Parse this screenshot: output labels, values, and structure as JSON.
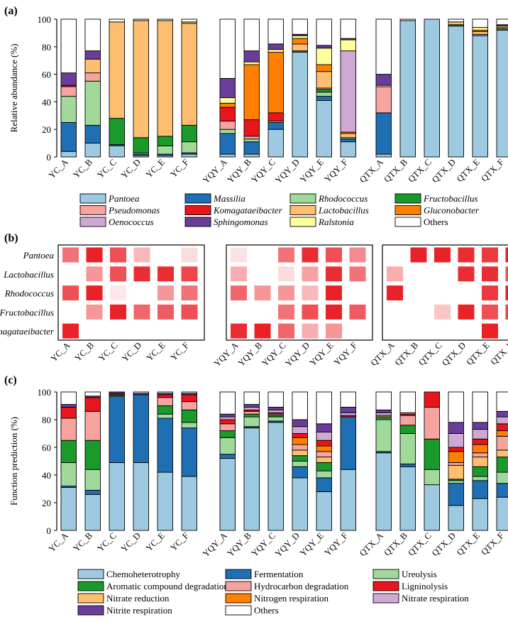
{
  "colors": {
    "Pantoea": "#9ecae1",
    "Massilia": "#1f6fb4",
    "Rhodococcus": "#a1d99b",
    "Fructobacillus": "#1a9a2a",
    "Pseudomonas": "#f7a3a0",
    "Komagataeibacter": "#e8161c",
    "Lactobacillus": "#fdbf6f",
    "Gluconobacter": "#ff7f00",
    "Oenococcus": "#cfa9d4",
    "Sphingomonas": "#6a3d9a",
    "Ralstonia": "#ffff99",
    "Others": "#ffffff",
    "Chemoheterotrophy": "#9ecae1",
    "Fermentation": "#1f6fb4",
    "Ureolysis": "#a1d99b",
    "Aromatic compound degradation": "#1a9a2a",
    "Hydrocarbon degradation": "#f7a3a0",
    "Ligninolysis": "#e8161c",
    "Nitrate reduction": "#fdbf6f",
    "Nitrogen respiration": "#ff7f00",
    "Nitrate respiration": "#cfa9d4",
    "Nitrite respiration": "#6a3d9a",
    "heat": "#e8161c"
  },
  "panels": {
    "a": "(a)",
    "b": "(b)",
    "c": "(c)"
  },
  "samples": {
    "groups": [
      [
        "YC_A",
        "YC_B",
        "YC_C",
        "YC_D",
        "YC_E",
        "YC_F"
      ],
      [
        "YQY_A",
        "YQY_B",
        "YQY_C",
        "YQY_D",
        "YQY_E",
        "YQY_F"
      ],
      [
        "QTX_A",
        "QTX_B",
        "QTX_C",
        "QTX_D",
        "QTX_E",
        "QTX_F"
      ]
    ]
  },
  "chart_data": [
    {
      "type": "bar",
      "stacked": true,
      "title": "",
      "ylabel": "Relative abundance (%)",
      "ylim": [
        0,
        100
      ],
      "yticks": [
        0,
        20,
        40,
        60,
        80,
        100
      ],
      "legend_position": "bottom",
      "legend": [
        "Pantoea",
        "Massilia",
        "Rhodococcus",
        "Fructobacillus",
        "Pseudomonas",
        "Komagataeibacter",
        "Lactobacillus",
        "Gluconobacter",
        "Oenococcus",
        "Sphingomonas",
        "Ralstonia",
        "Others"
      ],
      "stack_order": [
        "Pantoea",
        "Massilia",
        "Rhodococcus",
        "Fructobacillus",
        "Pseudomonas",
        "Komagataeibacter",
        "Lactobacillus",
        "Gluconobacter",
        "Oenococcus",
        "Ralstonia",
        "Sphingomonas",
        "Others"
      ],
      "categories": [
        "YC_A",
        "YC_B",
        "YC_C",
        "YC_D",
        "YC_E",
        "YC_F",
        "YQY_A",
        "YQY_B",
        "YQY_C",
        "YQY_D",
        "YQY_E",
        "YQY_F",
        "QTX_A",
        "QTX_B",
        "QTX_C",
        "QTX_D",
        "QTX_E",
        "QTX_F"
      ],
      "series": [
        {
          "name": "Pantoea",
          "values": [
            4,
            10,
            8,
            1,
            1,
            2,
            2,
            2,
            20,
            76,
            41,
            11,
            2,
            99,
            100,
            95,
            88,
            92
          ]
        },
        {
          "name": "Massilia",
          "values": [
            21,
            13,
            1,
            1,
            1,
            1,
            15,
            9,
            5,
            1,
            3,
            2,
            30,
            0,
            0,
            0,
            0,
            0
          ]
        },
        {
          "name": "Rhodococcus",
          "values": [
            19,
            32,
            0,
            1,
            6,
            8,
            3,
            2,
            1,
            0,
            3,
            1,
            0,
            0,
            0,
            0,
            0,
            0
          ]
        },
        {
          "name": "Fructobacillus",
          "values": [
            0,
            0,
            19,
            11,
            7,
            12,
            0,
            0,
            0,
            0,
            2,
            0,
            0,
            0,
            0,
            1,
            0,
            1
          ]
        },
        {
          "name": "Pseudomonas",
          "values": [
            7,
            6,
            0,
            0,
            0,
            0,
            6,
            2,
            0,
            0,
            1,
            0,
            19,
            0,
            0,
            0,
            1,
            0
          ]
        },
        {
          "name": "Komagataeibacter",
          "values": [
            1,
            0,
            0,
            0,
            0,
            0,
            10,
            12,
            6,
            0,
            0,
            0,
            0,
            0,
            0,
            0,
            0,
            0
          ]
        },
        {
          "name": "Lactobacillus",
          "values": [
            0,
            10,
            70,
            85,
            84,
            74,
            0,
            0,
            0,
            5,
            12,
            3,
            0,
            0,
            0,
            2,
            2,
            1
          ]
        },
        {
          "name": "Gluconobacter",
          "values": [
            0,
            0,
            0,
            0,
            0,
            0,
            3,
            40,
            44,
            4,
            5,
            1,
            0,
            0,
            0,
            0,
            1,
            0
          ]
        },
        {
          "name": "Oenococcus",
          "values": [
            0,
            0,
            0,
            0,
            0,
            0,
            0,
            0,
            0,
            0,
            0,
            59,
            0,
            0,
            0,
            0,
            0,
            0
          ]
        },
        {
          "name": "Ralstonia",
          "values": [
            0,
            0,
            0,
            0,
            0,
            1,
            4,
            2,
            2,
            2,
            12,
            8,
            1,
            0,
            0,
            0,
            2,
            1
          ]
        },
        {
          "name": "Sphingomonas",
          "values": [
            9,
            6,
            0,
            0,
            0,
            0,
            14,
            8,
            4,
            1,
            2,
            1,
            8,
            0,
            0,
            0,
            0,
            1
          ]
        },
        {
          "name": "Others",
          "values": [
            39,
            23,
            2,
            1,
            1,
            2,
            43,
            23,
            18,
            11,
            19,
            14,
            40,
            1,
            0,
            2,
            6,
            4
          ]
        }
      ]
    },
    {
      "type": "heatmap",
      "title": "",
      "rows": [
        "Pantoea",
        "Lactobacillus",
        "Rhodococcus",
        "Fructobacillus",
        "Komagataeibacter"
      ],
      "columns": [
        "YC_A",
        "YC_B",
        "YC_C",
        "YC_D",
        "YC_E",
        "YC_F",
        "YQY_A",
        "YQY_B",
        "YQY_C",
        "YQY_D",
        "YQY_E",
        "YQY_F",
        "QTX_A",
        "QTX_B",
        "QTX_C",
        "QTX_D",
        "QTX_E",
        "QTX_F"
      ],
      "values": [
        [
          0.6,
          0.95,
          0.75,
          0.3,
          0,
          0.15,
          0.12,
          0,
          0.6,
          0.9,
          0.75,
          0.5,
          0,
          0.95,
          0.95,
          0.9,
          0.85,
          0.95
        ],
        [
          0,
          0.45,
          0.75,
          0.9,
          0.9,
          0.8,
          0.35,
          0,
          0.15,
          0.4,
          0.9,
          0.6,
          0.35,
          0,
          0,
          0.9,
          0.9,
          0.75
        ],
        [
          0.75,
          0.95,
          0.1,
          0,
          0.45,
          0.6,
          0.65,
          0.45,
          0.45,
          0.3,
          0.95,
          0,
          0.95,
          0,
          0,
          0,
          0.85,
          0.95
        ],
        [
          0,
          0.45,
          0.95,
          0.65,
          0.7,
          0.75,
          0,
          0,
          0.6,
          0.75,
          0.95,
          0.7,
          0,
          0,
          0.25,
          0.95,
          0.75,
          0.8
        ],
        [
          0.95,
          0,
          0,
          0,
          0,
          0,
          0.9,
          0.95,
          0.65,
          0.35,
          0.45,
          0,
          0,
          0,
          0,
          0,
          0.95,
          0
        ]
      ]
    },
    {
      "type": "bar",
      "stacked": true,
      "title": "",
      "ylabel": "Function prediction (%)",
      "ylim": [
        0,
        100
      ],
      "yticks": [
        0,
        20,
        40,
        60,
        80,
        100
      ],
      "legend_position": "bottom",
      "legend": [
        "Chemoheterotrophy",
        "Fermentation",
        "Ureolysis",
        "Aromatic compound degradation",
        "Hydrocarbon degradation",
        "Ligninolysis",
        "Nitrate reduction",
        "Nitrogen respiration",
        "Nitrate respiration",
        "Nitrite respiration",
        "Others"
      ],
      "stack_order": [
        "Chemoheterotrophy",
        "Fermentation",
        "Ureolysis",
        "Aromatic compound degradation",
        "Nitrate reduction",
        "Hydrocarbon degradation",
        "Nitrogen respiration",
        "Ligninolysis",
        "Nitrate respiration",
        "Nitrite respiration",
        "Others"
      ],
      "categories": [
        "YC_A",
        "YC_B",
        "YC_C",
        "YC_D",
        "YC_E",
        "YC_F",
        "YQY_A",
        "YQY_B",
        "YQY_C",
        "YQY_D",
        "YQY_E",
        "YQY_F",
        "QTX_A",
        "QTX_B",
        "QTX_C",
        "QTX_D",
        "QTX_E",
        "QTX_F"
      ],
      "series": [
        {
          "name": "Chemoheterotrophy",
          "values": [
            31,
            26,
            49,
            49,
            42,
            39,
            52,
            74,
            78,
            38,
            28,
            44,
            56,
            46,
            33,
            18,
            23,
            24
          ]
        },
        {
          "name": "Fermentation",
          "values": [
            1,
            3,
            48,
            49,
            39,
            35,
            3,
            1,
            1,
            8,
            10,
            38,
            1,
            2,
            0,
            16,
            13,
            10
          ]
        },
        {
          "name": "Ureolysis",
          "values": [
            17,
            15,
            0,
            0,
            3,
            4,
            12,
            7,
            3,
            4,
            5,
            0,
            23,
            22,
            11,
            2,
            3,
            8
          ]
        },
        {
          "name": "Aromatic compound degradation",
          "values": [
            16,
            21,
            1,
            0,
            6,
            9,
            5,
            2,
            1,
            4,
            6,
            0,
            2,
            6,
            22,
            1,
            7,
            11
          ]
        },
        {
          "name": "Nitrate reduction",
          "values": [
            0,
            0,
            0,
            0,
            0,
            0,
            0,
            0,
            0,
            4,
            4,
            0,
            0,
            0,
            0,
            10,
            7,
            5
          ]
        },
        {
          "name": "Hydrocarbon degradation",
          "values": [
            16,
            21,
            0,
            0,
            6,
            6,
            5,
            2,
            1,
            4,
            4,
            0,
            1,
            7,
            23,
            2,
            3,
            10
          ]
        },
        {
          "name": "Nitrogen respiration",
          "values": [
            0,
            0,
            0,
            0,
            0,
            0,
            0,
            0,
            0,
            5,
            4,
            0,
            0,
            0,
            0,
            8,
            6,
            4
          ]
        },
        {
          "name": "Ligninolysis",
          "values": [
            8,
            10,
            1,
            0,
            2,
            5,
            3,
            1,
            1,
            3,
            4,
            1,
            0,
            1,
            11,
            3,
            4,
            5
          ]
        },
        {
          "name": "Nitrate respiration",
          "values": [
            0,
            0,
            0,
            0,
            0,
            0,
            2,
            2,
            2,
            5,
            6,
            2,
            2,
            1,
            0,
            10,
            7,
            5
          ]
        },
        {
          "name": "Nitrite respiration",
          "values": [
            2,
            1,
            1,
            1,
            1,
            1,
            2,
            2,
            2,
            5,
            6,
            4,
            2,
            0,
            0,
            8,
            5,
            4
          ]
        },
        {
          "name": "Others",
          "values": [
            9,
            3,
            0,
            1,
            1,
            1,
            16,
            9,
            11,
            20,
            23,
            11,
            13,
            15,
            0,
            22,
            22,
            14
          ]
        }
      ]
    }
  ]
}
